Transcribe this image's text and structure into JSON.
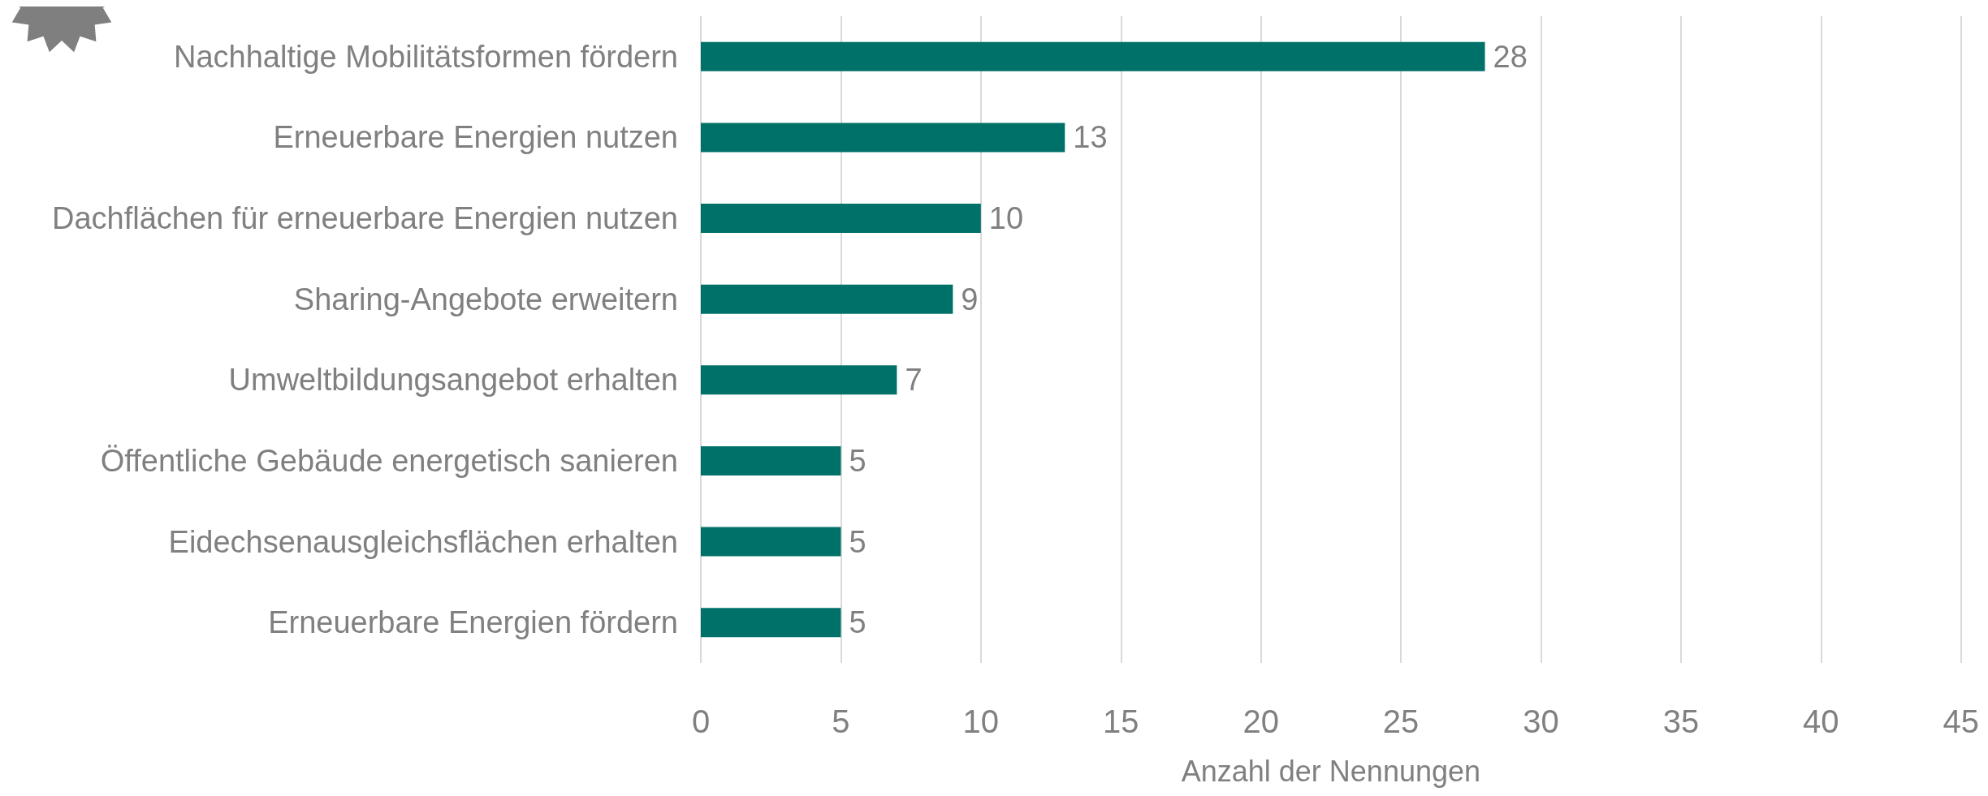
{
  "chart_data": {
    "type": "bar",
    "orientation": "horizontal",
    "xlabel": "Anzahl der Nennungen",
    "categories": [
      "Nachhaltige Mobilitätsformen fördern",
      "Erneuerbare Energien nutzen",
      "Dachflächen für erneuerbare Energien nutzen",
      "Sharing-Angebote erweitern",
      "Umweltbildungsangebot erhalten",
      "Öffentliche Gebäude energetisch sanieren",
      "Eidechsenausgleichsflächen erhalten",
      "Erneuerbare Energien fördern"
    ],
    "values": [
      28,
      13,
      10,
      9,
      7,
      5,
      5,
      5
    ],
    "color": "#007168",
    "xlim": [
      0,
      45
    ],
    "xticks": [
      0,
      5,
      10,
      15,
      20,
      25,
      30,
      35,
      40,
      45
    ],
    "grid": "x",
    "data_labels": true
  }
}
